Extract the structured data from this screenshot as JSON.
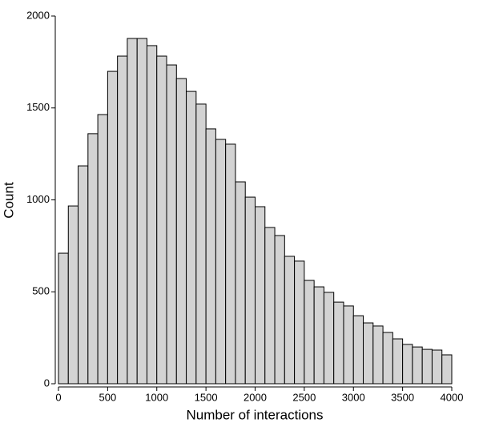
{
  "chart_data": {
    "type": "histogram",
    "xlabel": "Number of interactions",
    "ylabel": "Count",
    "bins": [
      0,
      100,
      200,
      300,
      400,
      500,
      600,
      700,
      800,
      900,
      1000,
      1100,
      1200,
      1300,
      1400,
      1500,
      1600,
      1700,
      1800,
      1900,
      2000,
      2100,
      2200,
      2300,
      2400,
      2500,
      2600,
      2700,
      2800,
      2900,
      3000,
      3100,
      3200,
      3300,
      3400,
      3500,
      3600,
      3700,
      3800,
      3900,
      4000
    ],
    "counts": [
      710,
      967,
      1185,
      1360,
      1464,
      1699,
      1782,
      1878,
      1878,
      1839,
      1782,
      1734,
      1660,
      1590,
      1521,
      1386,
      1329,
      1303,
      1098,
      1015,
      963,
      850,
      806,
      693,
      667,
      562,
      527,
      497,
      444,
      423,
      370,
      331,
      314,
      279,
      244,
      214,
      200,
      187,
      183,
      157
    ],
    "color": "#d3d3d3",
    "xlim": [
      0,
      4000
    ],
    "ylim": [
      0,
      2000
    ],
    "xticks": [
      0,
      500,
      1000,
      1500,
      2000,
      2500,
      3000,
      3500,
      4000
    ],
    "yticks": [
      0,
      500,
      1000,
      1500,
      2000
    ]
  }
}
